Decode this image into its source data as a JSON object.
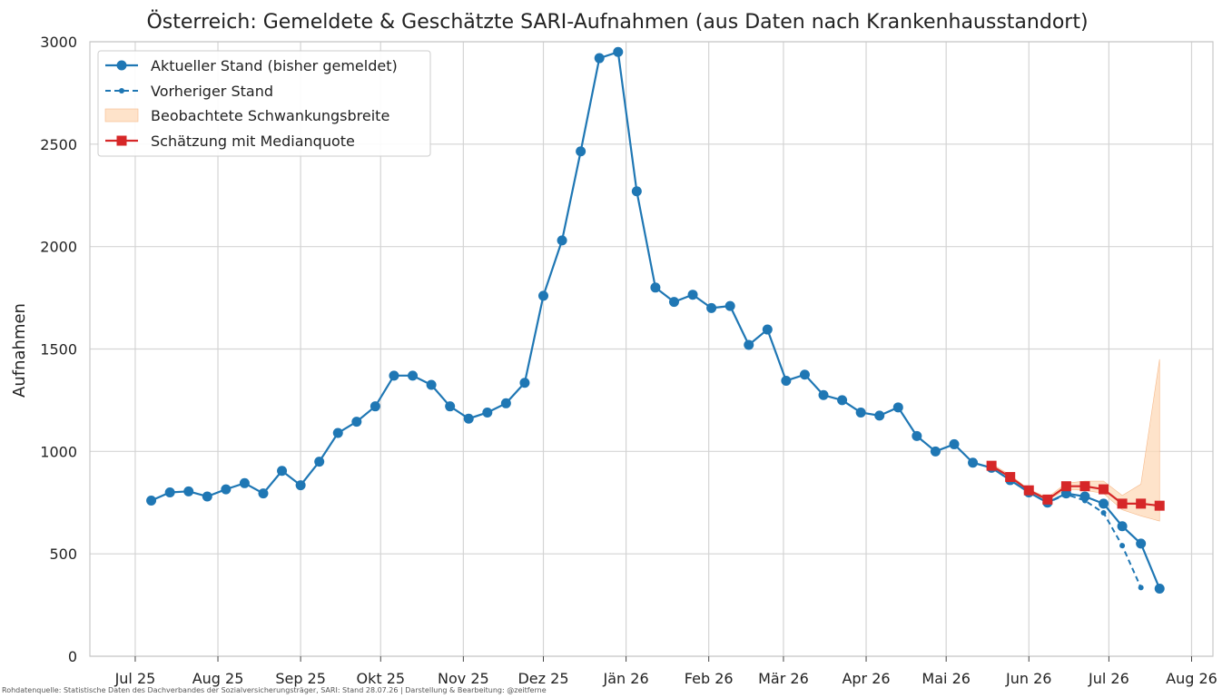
{
  "chart_data": {
    "type": "line",
    "title": "Österreich: Gemeldete & Geschätzte SARI-Aufnahmen (aus Daten nach Krankenhausstandort)",
    "ylabel": "Aufnahmen",
    "xlabel": "",
    "ylim": [
      0,
      3000
    ],
    "yticks": [
      0,
      500,
      1000,
      1500,
      2000,
      2500,
      3000
    ],
    "xticks": [
      {
        "date": "2025-07-01",
        "label": "Jul 25"
      },
      {
        "date": "2025-08-01",
        "label": "Aug 25"
      },
      {
        "date": "2025-09-01",
        "label": "Sep 25"
      },
      {
        "date": "2025-10-01",
        "label": "Okt 25"
      },
      {
        "date": "2025-11-01",
        "label": "Nov 25"
      },
      {
        "date": "2025-12-01",
        "label": "Dez 25"
      },
      {
        "date": "2026-01-01",
        "label": "Jän 26"
      },
      {
        "date": "2026-02-01",
        "label": "Feb 26"
      },
      {
        "date": "2026-03-01",
        "label": "Mär 26"
      },
      {
        "date": "2026-04-01",
        "label": "Apr 26"
      },
      {
        "date": "2026-05-01",
        "label": "Mai 26"
      },
      {
        "date": "2026-06-01",
        "label": "Jun 26"
      },
      {
        "date": "2026-07-01",
        "label": "Jul 26"
      },
      {
        "date": "2026-08-01",
        "label": "Aug 26"
      }
    ],
    "xrange": [
      "2025-06-14",
      "2026-08-09"
    ],
    "grid": true,
    "legend_position": "top-left",
    "colors": {
      "current": "#1f77b4",
      "previous": "#1f77b4",
      "band": "#fdd9b8",
      "estimate": "#d62728"
    },
    "series": [
      {
        "name": "Aktueller Stand (bisher gemeldet)",
        "style": "solid-circle",
        "x": [
          "2025-07-07",
          "2025-07-14",
          "2025-07-21",
          "2025-07-28",
          "2025-08-04",
          "2025-08-11",
          "2025-08-18",
          "2025-08-25",
          "2025-09-01",
          "2025-09-08",
          "2025-09-15",
          "2025-09-22",
          "2025-09-29",
          "2025-10-06",
          "2025-10-13",
          "2025-10-20",
          "2025-10-27",
          "2025-11-03",
          "2025-11-10",
          "2025-11-17",
          "2025-11-24",
          "2025-12-01",
          "2025-12-08",
          "2025-12-15",
          "2025-12-22",
          "2025-12-29",
          "2026-01-05",
          "2026-01-12",
          "2026-01-19",
          "2026-01-26",
          "2026-02-02",
          "2026-02-09",
          "2026-02-16",
          "2026-02-23",
          "2026-03-02",
          "2026-03-09",
          "2026-03-16",
          "2026-03-23",
          "2026-03-30",
          "2026-04-06",
          "2026-04-13",
          "2026-04-20",
          "2026-04-27",
          "2026-05-04",
          "2026-05-11",
          "2026-05-18",
          "2026-05-25",
          "2026-06-01",
          "2026-06-08",
          "2026-06-15",
          "2026-06-22",
          "2026-06-29",
          "2026-07-06",
          "2026-07-13",
          "2026-07-20"
        ],
        "y": [
          760,
          800,
          805,
          780,
          815,
          845,
          795,
          905,
          835,
          950,
          1090,
          1145,
          1220,
          1370,
          1370,
          1325,
          1220,
          1160,
          1190,
          1235,
          1335,
          1760,
          2030,
          2465,
          2920,
          2950,
          2270,
          1800,
          1730,
          1765,
          1700,
          1710,
          1520,
          1595,
          1345,
          1375,
          1275,
          1250,
          1190,
          1175,
          1215,
          1075,
          1000,
          1035,
          945,
          920,
          860,
          800,
          750,
          795,
          780,
          745,
          635,
          550,
          330
        ]
      },
      {
        "name": "Vorheriger Stand",
        "style": "dashed-dot",
        "x": [
          "2026-05-18",
          "2026-05-25",
          "2026-06-01",
          "2026-06-08",
          "2026-06-15",
          "2026-06-22",
          "2026-06-29",
          "2026-07-06",
          "2026-07-13"
        ],
        "y": [
          920,
          860,
          800,
          750,
          790,
          760,
          700,
          540,
          335
        ]
      },
      {
        "name": "Beobachtete Schwankungsbreite",
        "style": "band",
        "x": [
          "2026-05-18",
          "2026-05-25",
          "2026-06-01",
          "2026-06-08",
          "2026-06-15",
          "2026-06-22",
          "2026-06-29",
          "2026-07-06",
          "2026-07-13",
          "2026-07-20"
        ],
        "low": [
          925,
          870,
          805,
          760,
          815,
          810,
          795,
          715,
          685,
          660
        ],
        "high": [
          940,
          885,
          815,
          775,
          845,
          855,
          855,
          785,
          840,
          1450
        ]
      },
      {
        "name": "Schätzung mit Medianquote",
        "style": "solid-square",
        "x": [
          "2026-05-18",
          "2026-05-25",
          "2026-06-01",
          "2026-06-08",
          "2026-06-15",
          "2026-06-22",
          "2026-06-29",
          "2026-07-06",
          "2026-07-13",
          "2026-07-20"
        ],
        "y": [
          930,
          875,
          810,
          765,
          830,
          830,
          815,
          745,
          745,
          735
        ]
      }
    ]
  },
  "footer": "Rohdatenquelle: Statistische Daten des Dachverbandes der Sozialversicherungsträger, SARI: Stand 28.07.26 | Darstellung & Bearbeitung: @zeitferne"
}
